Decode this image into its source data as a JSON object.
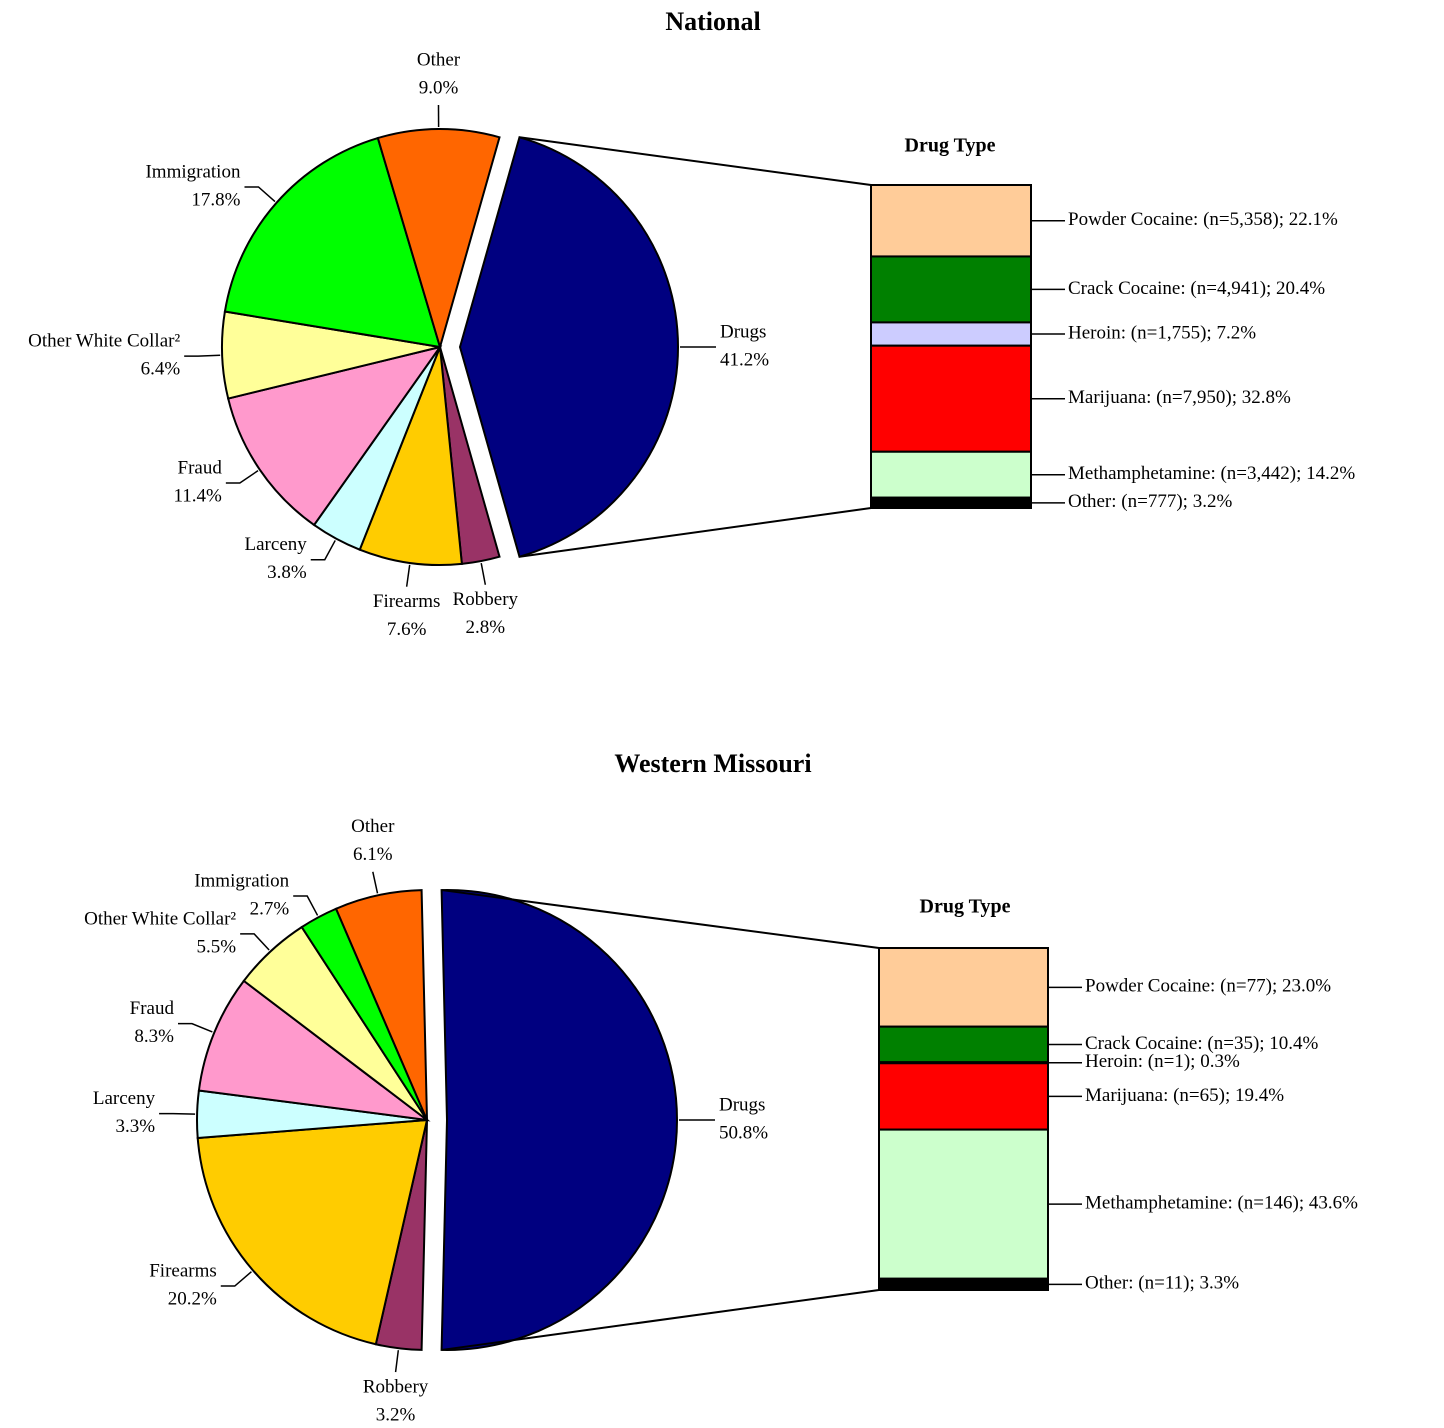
{
  "chart_data": [
    {
      "type": "pie",
      "title": "National",
      "categories": [
        "Drugs",
        "Robbery",
        "Firearms",
        "Larceny",
        "Fraud",
        "Other White Collar²",
        "Immigration",
        "Other"
      ],
      "values": [
        41.2,
        2.8,
        7.6,
        3.8,
        11.4,
        6.4,
        17.8,
        9.0
      ],
      "value_labels": [
        "41.2%",
        "2.8%",
        "7.6%",
        "3.8%",
        "11.4%",
        "6.4%",
        "17.8%",
        "9.0%"
      ],
      "colors": [
        "#000080",
        "#993366",
        "#ffcc00",
        "#ccffff",
        "#ff99cc",
        "#ffff99",
        "#00ff00",
        "#ff6600"
      ],
      "breakdown": {
        "type": "bar",
        "title": "Drug Type",
        "values": [
          22.1,
          20.4,
          7.2,
          32.8,
          14.2,
          3.2
        ],
        "counts": [
          5358,
          4941,
          1755,
          7950,
          3442,
          777
        ],
        "value_labels": [
          "Powder Cocaine: (n=5,358); 22.1%",
          "Crack Cocaine: (n=4,941); 20.4%",
          "Heroin: (n=1,755); 7.2%",
          "Marijuana: (n=7,950); 32.8%",
          "Methamphetamine: (n=3,442); 14.2%",
          "Other: (n=777); 3.2%"
        ],
        "colors": [
          "#ffcc99",
          "#008000",
          "#ccccff",
          "#ff0000",
          "#ccffcc",
          "#000000"
        ]
      }
    },
    {
      "type": "pie",
      "title": "Western Missouri",
      "categories": [
        "Drugs",
        "Robbery",
        "Firearms",
        "Larceny",
        "Fraud",
        "Other White Collar²",
        "Immigration",
        "Other"
      ],
      "values": [
        50.8,
        3.2,
        20.2,
        3.3,
        8.3,
        5.5,
        2.7,
        6.1
      ],
      "value_labels": [
        "50.8%",
        "3.2%",
        "20.2%",
        "3.3%",
        "8.3%",
        "5.5%",
        "2.7%",
        "6.1%"
      ],
      "colors": [
        "#000080",
        "#993366",
        "#ffcc00",
        "#ccffff",
        "#ff99cc",
        "#ffff99",
        "#00ff00",
        "#ff6600"
      ],
      "breakdown": {
        "type": "bar",
        "title": "Drug Type",
        "values": [
          23.0,
          10.4,
          0.3,
          19.4,
          43.6,
          3.3
        ],
        "counts": [
          77,
          35,
          1,
          65,
          146,
          11
        ],
        "value_labels": [
          "Powder Cocaine: (n=77); 23.0%",
          "Crack Cocaine: (n=35); 10.4%",
          "Heroin: (n=1); 0.3%",
          "Marijuana: (n=65); 19.4%",
          "Methamphetamine: (n=146); 43.6%",
          "Other: (n=11); 3.3%"
        ],
        "colors": [
          "#ffcc99",
          "#008000",
          "#ccccff",
          "#ff0000",
          "#ccffcc",
          "#000000"
        ]
      }
    }
  ]
}
